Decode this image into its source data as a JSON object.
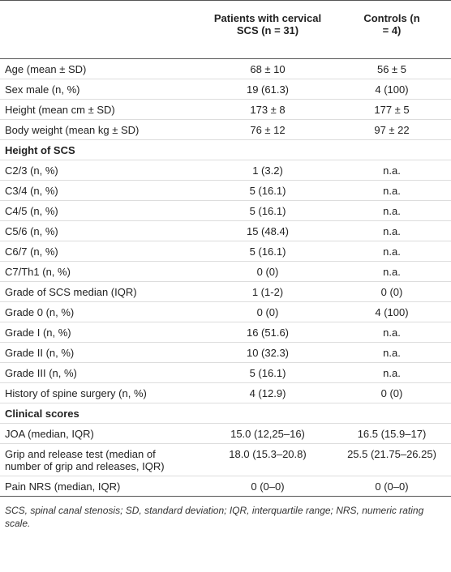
{
  "header": {
    "patients": "Patients with cervical SCS (n = 31)",
    "controls": "Controls (n = 4)"
  },
  "table": {
    "rows": [
      {
        "label": "Age (mean ± SD)",
        "patients": "68 ± 10",
        "controls": "56 ± 5"
      },
      {
        "label": "Sex male (n, %)",
        "patients": "19 (61.3)",
        "controls": "4 (100)"
      },
      {
        "label": "Height (mean cm ± SD)",
        "patients": "173 ± 8",
        "controls": "177 ± 5"
      },
      {
        "label": "Body weight (mean kg ± SD)",
        "patients": "76 ± 12",
        "controls": "97 ± 22"
      },
      {
        "section": "Height of SCS"
      },
      {
        "label": "C2/3 (n, %)",
        "patients": "1 (3.2)",
        "controls": "n.a."
      },
      {
        "label": "C3/4 (n, %)",
        "patients": "5 (16.1)",
        "controls": "n.a."
      },
      {
        "label": "C4/5 (n, %)",
        "patients": "5 (16.1)",
        "controls": "n.a."
      },
      {
        "label": "C5/6 (n, %)",
        "patients": "15 (48.4)",
        "controls": "n.a."
      },
      {
        "label": "C6/7 (n, %)",
        "patients": "5 (16.1)",
        "controls": "n.a."
      },
      {
        "label": "C7/Th1 (n, %)",
        "patients": "0 (0)",
        "controls": "n.a."
      },
      {
        "label": "Grade of SCS median (IQR)",
        "patients": "1 (1-2)",
        "controls": "0 (0)"
      },
      {
        "label": "Grade 0 (n, %)",
        "patients": "0 (0)",
        "controls": "4 (100)"
      },
      {
        "label": "Grade I (n, %)",
        "patients": "16 (51.6)",
        "controls": "n.a."
      },
      {
        "label": "Grade II (n, %)",
        "patients": "10 (32.3)",
        "controls": "n.a."
      },
      {
        "label": "Grade III (n, %)",
        "patients": "5 (16.1)",
        "controls": "n.a."
      },
      {
        "label": "History of spine surgery (n, %)",
        "patients": "4 (12.9)",
        "controls": "0 (0)"
      },
      {
        "section": "Clinical scores"
      },
      {
        "label": "JOA (median, IQR)",
        "patients": "15.0 (12,25–16)",
        "controls": "16.5 (15.9–17)"
      },
      {
        "label": "Grip and release test (median of number of grip and releases, IQR)",
        "patients": "18.0 (15.3–20.8)",
        "controls": "25.5 (21.75–26.25)"
      },
      {
        "label": "Pain NRS (median, IQR)",
        "patients": "0 (0–0)",
        "controls": "0 (0–0)"
      }
    ]
  },
  "footnote": "SCS, spinal canal stenosis; SD, standard deviation; IQR, interquartile range; NRS, numeric rating scale."
}
